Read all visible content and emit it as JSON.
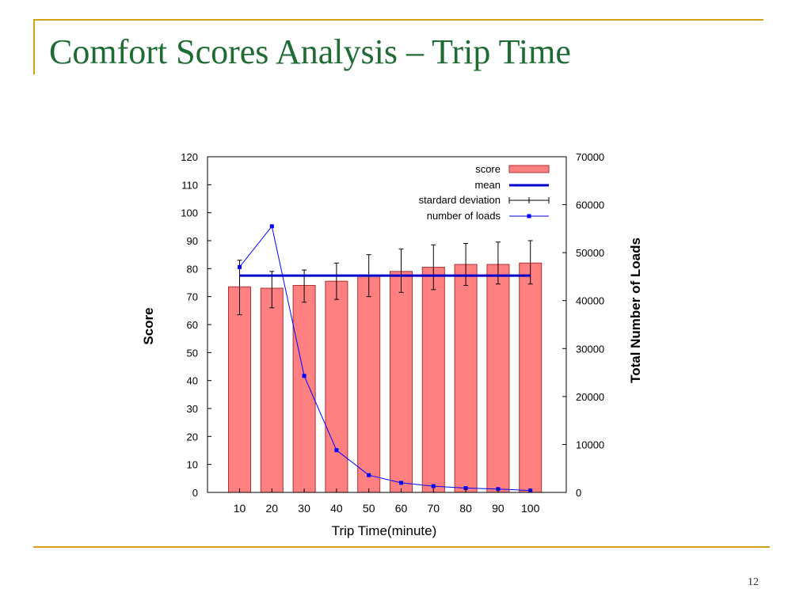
{
  "slide": {
    "title": "Comfort Scores Analysis – Trip Time",
    "page_number": "12"
  },
  "colors": {
    "title": "#1e6b34",
    "accent": "#d4a017",
    "bar_fill": "#ff8080",
    "bar_stroke": "#b03030",
    "mean": "#0000cc",
    "loads": "#0000ff"
  },
  "chart_data": {
    "type": "bar",
    "xlabel": "Trip Time(minute)",
    "ylabel": "Score",
    "y2label": "Total Number of Loads",
    "categories": [
      "10",
      "20",
      "30",
      "40",
      "50",
      "60",
      "70",
      "80",
      "90",
      "100"
    ],
    "ylim": [
      0,
      120
    ],
    "yticks": [
      "0",
      "10",
      "20",
      "30",
      "40",
      "50",
      "60",
      "70",
      "80",
      "90",
      "100",
      "110",
      "120"
    ],
    "y2lim": [
      0,
      70000
    ],
    "y2ticks": [
      "0",
      "10000",
      "20000",
      "30000",
      "40000",
      "50000",
      "60000",
      "70000"
    ],
    "grid": false,
    "legend_position": "top-right",
    "series": [
      {
        "name": "score",
        "type": "bar",
        "values": [
          73.5,
          73,
          74,
          75.5,
          77.5,
          79,
          80.5,
          81.5,
          81.5,
          82
        ]
      },
      {
        "name": "mean",
        "type": "hline",
        "value": 77.5
      },
      {
        "name": "stardard deviation",
        "type": "errorbar",
        "lower": [
          63.5,
          66,
          68,
          69,
          70,
          71.5,
          72.5,
          74,
          74.5,
          74.5
        ],
        "upper": [
          83,
          79,
          79.5,
          82,
          85,
          87,
          88.5,
          89,
          89.5,
          90
        ]
      },
      {
        "name": "number of loads",
        "type": "line",
        "axis": "right",
        "values": [
          47000,
          55500,
          24300,
          8800,
          3600,
          2000,
          1300,
          900,
          700,
          400
        ]
      }
    ]
  }
}
